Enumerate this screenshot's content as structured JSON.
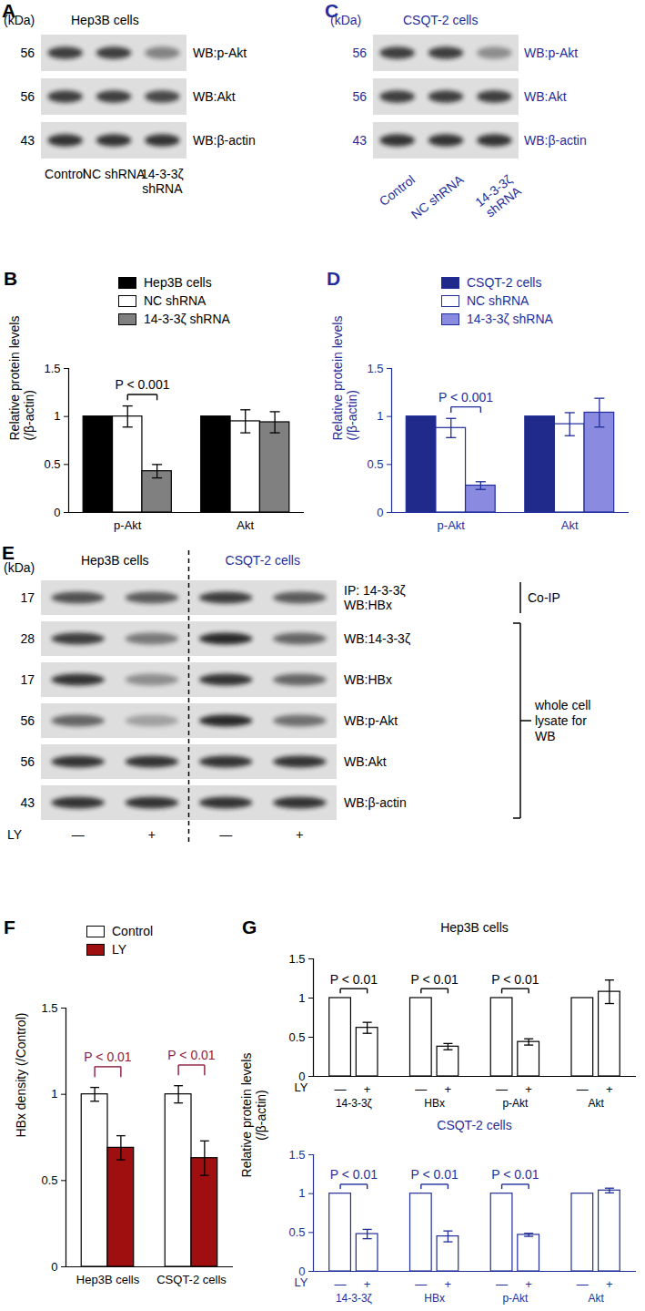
{
  "chart_data": [
    {
      "panel": "B",
      "type": "bar",
      "legend": "top right",
      "color": "#000000",
      "categories": [
        "p-Akt",
        "Akt"
      ],
      "series": [
        {
          "name": "Hep3B cells",
          "color": "#000000",
          "values": [
            1,
            1
          ],
          "errors": [
            null,
            null
          ]
        },
        {
          "name": "NC shRNA",
          "color": "#ffffff",
          "values": [
            1,
            0.95
          ],
          "errors": [
            0.11,
            0.12
          ]
        },
        {
          "name": "14-3-3ζ shRNA",
          "color": "#808080",
          "values": [
            0.43,
            0.94
          ],
          "errors": [
            0.07,
            0.11
          ]
        }
      ],
      "ylabel": "Relative protein levels (/β-actin)",
      "ylim": [
        0,
        1.5
      ],
      "yticks": [
        0,
        0.5,
        1,
        1.5
      ],
      "annotations": [
        {
          "text": "P < 0.001",
          "category": "p-Akt",
          "between": [
            "NC shRNA",
            "14-3-3ζ shRNA"
          ]
        }
      ]
    },
    {
      "panel": "D",
      "type": "bar",
      "legend": "top right",
      "color": "#1f2e9a",
      "categories": [
        "p-Akt",
        "Akt"
      ],
      "series": [
        {
          "name": "CSQT-2 cells",
          "color": "#1f2a8a",
          "values": [
            1,
            1
          ],
          "errors": [
            null,
            null
          ]
        },
        {
          "name": "NC shRNA",
          "color": "#ffffff",
          "values": [
            0.88,
            0.92
          ],
          "errors": [
            0.1,
            0.12
          ]
        },
        {
          "name": "14-3-3ζ shRNA",
          "color": "#8a8ae0",
          "values": [
            0.28,
            1.04
          ],
          "errors": [
            0.04,
            0.15
          ]
        }
      ],
      "ylabel": "Relative protein levels (/β-actin)",
      "ylim": [
        0,
        1.5
      ],
      "yticks": [
        0,
        0.5,
        1,
        1.5
      ],
      "annotations": [
        {
          "text": "P < 0.001",
          "category": "p-Akt",
          "between": [
            "NC shRNA",
            "14-3-3ζ shRNA"
          ]
        }
      ]
    },
    {
      "panel": "F",
      "type": "bar",
      "legend": "top",
      "color": "#000000",
      "categories": [
        "Hep3B cells",
        "CSQT-2 cells"
      ],
      "series": [
        {
          "name": "Control",
          "color": "#ffffff",
          "values": [
            1,
            1
          ],
          "errors": [
            0.04,
            0.05
          ]
        },
        {
          "name": "LY",
          "color": "#a00f0f",
          "values": [
            0.69,
            0.63
          ],
          "errors": [
            0.07,
            0.1
          ]
        }
      ],
      "ylabel": "HBx density (/Control)",
      "ylim": [
        0,
        1.5
      ],
      "yticks": [
        0,
        0.5,
        1,
        1.5
      ],
      "annotations": [
        {
          "text": "P < 0.01",
          "category": "Hep3B cells",
          "between": [
            "Control",
            "LY"
          ],
          "color": "#8b1c3c"
        },
        {
          "text": "P < 0.01",
          "category": "CSQT-2 cells",
          "between": [
            "Control",
            "LY"
          ],
          "color": "#8b1c3c"
        }
      ]
    },
    {
      "panel": "G",
      "type": "bar",
      "title": "Hep3B cells",
      "color": "#000000",
      "categories": [
        "14-3-3ζ",
        "HBx",
        "p-Akt",
        "Akt"
      ],
      "xlabel": "LY",
      "series": [
        {
          "name": "—",
          "color": "#ffffff",
          "values": [
            1,
            1,
            1,
            1
          ],
          "errors": [
            null,
            null,
            null,
            null
          ]
        },
        {
          "name": "+",
          "color": "#ffffff",
          "values": [
            0.62,
            0.38,
            0.44,
            1.08
          ],
          "errors": [
            0.07,
            0.04,
            0.04,
            0.15
          ]
        }
      ],
      "ylabel": "Relative protein levels (/β-actin)",
      "ylim": [
        0,
        1.5
      ],
      "yticks": [
        0,
        0.5,
        1,
        1.5
      ],
      "annotations": [
        {
          "text": "P < 0.01",
          "category": "14-3-3ζ",
          "between": [
            "—",
            "+"
          ]
        },
        {
          "text": "P < 0.01",
          "category": "HBx",
          "between": [
            "—",
            "+"
          ]
        },
        {
          "text": "P < 0.01",
          "category": "p-Akt",
          "between": [
            "—",
            "+"
          ]
        }
      ]
    },
    {
      "type": "bar",
      "title": "CSQT-2 cells",
      "color": "#1f2e9a",
      "categories": [
        "14-3-3ζ",
        "HBx",
        "p-Akt",
        "Akt"
      ],
      "xlabel": "LY",
      "series": [
        {
          "name": "—",
          "color": "#ffffff",
          "values": [
            1,
            1,
            1,
            1
          ],
          "errors": [
            null,
            null,
            null,
            null
          ]
        },
        {
          "name": "+",
          "color": "#ffffff",
          "values": [
            0.48,
            0.45,
            0.47,
            1.04
          ],
          "errors": [
            0.06,
            0.07,
            0.02,
            0.03
          ]
        }
      ],
      "ylim": [
        0,
        1.5
      ],
      "yticks": [
        0,
        0.5,
        1,
        1.5
      ],
      "annotations": [
        {
          "text": "P < 0.01",
          "category": "14-3-3ζ",
          "between": [
            "—",
            "+"
          ]
        },
        {
          "text": "P < 0.01",
          "category": "HBx",
          "between": [
            "—",
            "+"
          ]
        },
        {
          "text": "P < 0.01",
          "category": "p-Akt",
          "between": [
            "—",
            "+"
          ]
        }
      ]
    }
  ],
  "blots": [
    {
      "panel": "A",
      "unit": "(kDa)",
      "title": "Hep3B cells",
      "color": "#000000",
      "lanes": [
        "Control",
        "NC shRNA",
        "14-3-3ζ shRNA"
      ],
      "rows": [
        {
          "kda": 56,
          "label": "WB:p-Akt",
          "bands": [
            0.8,
            0.8,
            0.45
          ]
        },
        {
          "kda": 56,
          "label": "WB:Akt",
          "bands": [
            0.8,
            0.8,
            0.75
          ]
        },
        {
          "kda": 43,
          "label": "WB:β-actin",
          "bands": [
            0.85,
            0.85,
            0.85
          ]
        }
      ]
    },
    {
      "panel": "C",
      "unit": "(kDa)",
      "title": "CSQT-2 cells",
      "color": "#1f2e9a",
      "lanes": [
        "Control",
        "NC shRNA",
        "14-3-3ζ shRNA"
      ],
      "rows": [
        {
          "kda": 56,
          "label": "WB:p-Akt",
          "bands": [
            0.8,
            0.8,
            0.4
          ]
        },
        {
          "kda": 56,
          "label": "WB:Akt",
          "bands": [
            0.8,
            0.8,
            0.8
          ]
        },
        {
          "kda": 43,
          "label": "WB:β-actin",
          "bands": [
            0.85,
            0.85,
            0.85
          ]
        }
      ]
    },
    {
      "panel": "E",
      "unit": "(kDa)",
      "color": "#000000",
      "groups": [
        {
          "name": "Hep3B cells",
          "color": "#000000"
        },
        {
          "name": "CSQT-2 cells",
          "color": "#1f2e9a"
        }
      ],
      "sections": [
        {
          "label": "Co-IP",
          "rows": [
            {
              "kda": 17,
              "label": [
                "IP: 14-3-3ζ",
                "WB:HBx"
              ],
              "bands": [
                0.7,
                0.65,
                0.8,
                0.65
              ]
            }
          ]
        },
        {
          "label": "whole cell lysate for WB",
          "rows": [
            {
              "kda": 28,
              "label": "WB:14-3-3ζ",
              "bands": [
                0.8,
                0.5,
                0.9,
                0.6
              ]
            },
            {
              "kda": 17,
              "label": "WB:HBx",
              "bands": [
                0.85,
                0.4,
                0.85,
                0.6
              ]
            },
            {
              "kda": 56,
              "label": "WB:p-Akt",
              "bands": [
                0.6,
                0.3,
                0.9,
                0.55
              ]
            },
            {
              "kda": 56,
              "label": "WB:Akt",
              "bands": [
                0.85,
                0.85,
                0.85,
                0.85
              ]
            },
            {
              "kda": 43,
              "label": "WB:β-actin",
              "bands": [
                0.85,
                0.85,
                0.85,
                0.85
              ]
            }
          ]
        }
      ],
      "treatment": {
        "label": "LY",
        "lanes": [
          "—",
          "+",
          "—",
          "+"
        ]
      }
    }
  ]
}
